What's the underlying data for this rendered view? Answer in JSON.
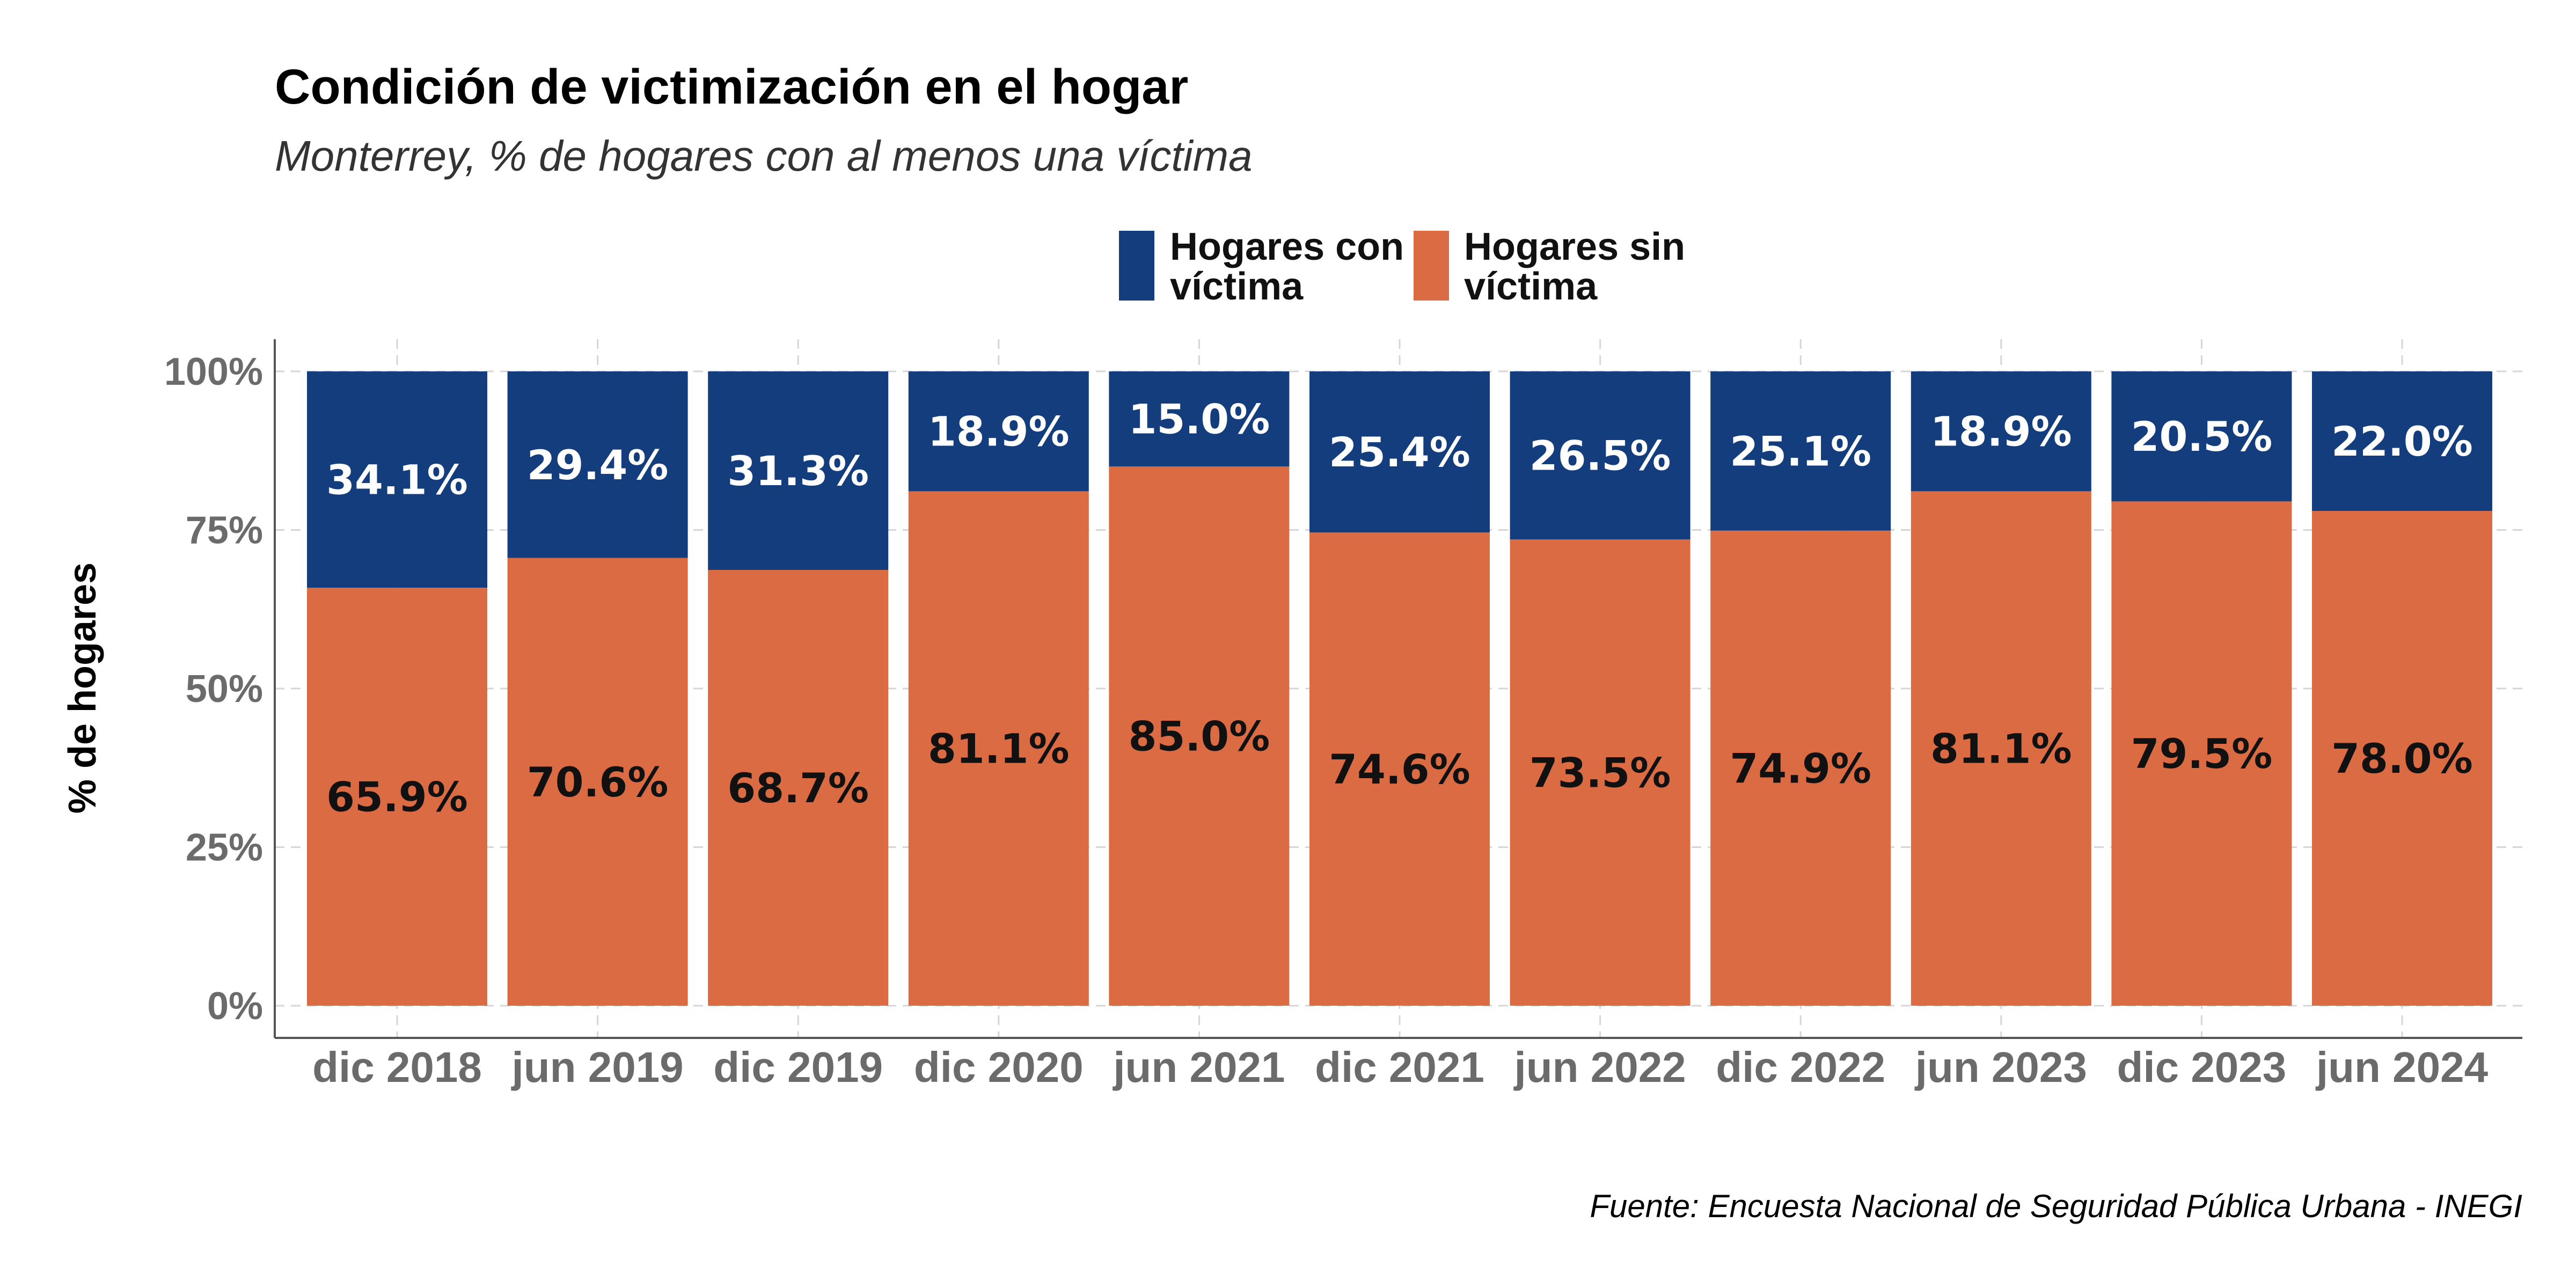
{
  "colors": {
    "con_victima": "#143d7d",
    "sin_victima": "#db6b42",
    "background": "#ffffff"
  },
  "chart_data": {
    "type": "bar",
    "stacked": true,
    "title": "Condición de victimización en el hogar",
    "subtitle": "Monterrey, % de hogares con al menos una víctima",
    "ylabel": "% de hogares",
    "xlabel": "",
    "ylim": [
      0,
      100
    ],
    "yticks": [
      "0%",
      "25%",
      "50%",
      "75%",
      "100%"
    ],
    "ytick_values": [
      0,
      25,
      50,
      75,
      100
    ],
    "grid": true,
    "legend_position": "top",
    "categories": [
      "dic 2018",
      "jun 2019",
      "dic 2019",
      "dic 2020",
      "jun 2021",
      "dic 2021",
      "jun 2022",
      "dic 2022",
      "jun 2023",
      "dic 2023",
      "jun 2024"
    ],
    "series": [
      {
        "name": "Hogares sin víctima",
        "legend_lines": [
          "Hogares sin",
          "víctima"
        ],
        "color": "#db6b42",
        "values": [
          65.9,
          70.6,
          68.7,
          81.1,
          85.0,
          74.6,
          73.5,
          74.9,
          81.1,
          79.5,
          78.0
        ],
        "labels": [
          "65.9%",
          "70.6%",
          "68.7%",
          "81.1%",
          "85.0%",
          "74.6%",
          "73.5%",
          "74.9%",
          "81.1%",
          "79.5%",
          "78.0%"
        ]
      },
      {
        "name": "Hogares con víctima",
        "legend_lines": [
          "Hogares con",
          "víctima"
        ],
        "color": "#143d7d",
        "values": [
          34.1,
          29.4,
          31.3,
          18.9,
          15.0,
          25.4,
          26.5,
          25.1,
          18.9,
          20.5,
          22.0
        ],
        "labels": [
          "34.1%",
          "29.4%",
          "31.3%",
          "18.9%",
          "15.0%",
          "25.4%",
          "26.5%",
          "25.1%",
          "18.9%",
          "20.5%",
          "22.0%"
        ]
      }
    ],
    "caption": "Fuente: Encuesta Nacional de Seguridad Pública Urbana - INEGI"
  }
}
